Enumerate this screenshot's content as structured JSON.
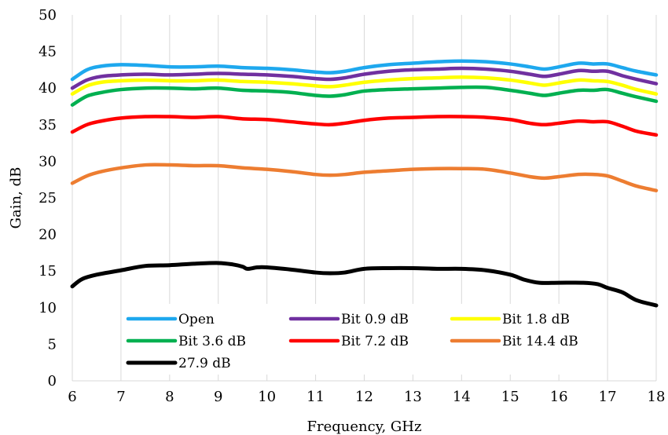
{
  "chart_data": {
    "type": "line",
    "title": "",
    "xlabel": "Frequency, GHz",
    "ylabel": "Gain, dB",
    "xlim": [
      6,
      18
    ],
    "ylim": [
      0,
      50
    ],
    "xticks": [
      6,
      7,
      8,
      9,
      10,
      11,
      12,
      13,
      14,
      15,
      16,
      17,
      18
    ],
    "yticks": [
      0,
      5,
      10,
      15,
      20,
      25,
      30,
      35,
      40,
      45,
      50
    ],
    "grid": "vertical",
    "legend": "bottom-left",
    "series": [
      {
        "name": "Open",
        "color": "#1ea8ee",
        "x": [
          6,
          6.3,
          6.6,
          7,
          7.5,
          8,
          8.5,
          9,
          9.5,
          10,
          10.5,
          11,
          11.3,
          11.6,
          12,
          12.5,
          13,
          13.5,
          14,
          14.5,
          15,
          15.4,
          15.7,
          16,
          16.4,
          16.7,
          17,
          17.3,
          17.6,
          18
        ],
        "y": [
          41.2,
          42.5,
          43.0,
          43.2,
          43.1,
          42.9,
          42.9,
          43.0,
          42.8,
          42.7,
          42.5,
          42.2,
          42.1,
          42.3,
          42.8,
          43.2,
          43.4,
          43.6,
          43.7,
          43.6,
          43.3,
          42.9,
          42.6,
          42.9,
          43.4,
          43.3,
          43.3,
          42.8,
          42.3,
          41.8
        ]
      },
      {
        "name": "Bit 0.9 dB",
        "color": "#7030a0",
        "x": [
          6,
          6.3,
          6.6,
          7,
          7.5,
          8,
          8.5,
          9,
          9.5,
          10,
          10.5,
          11,
          11.3,
          11.6,
          12,
          12.5,
          13,
          13.5,
          14,
          14.5,
          15,
          15.4,
          15.7,
          16,
          16.4,
          16.7,
          17,
          17.3,
          17.6,
          18
        ],
        "y": [
          40.0,
          41.1,
          41.6,
          41.8,
          41.9,
          41.8,
          41.9,
          42.0,
          41.9,
          41.8,
          41.6,
          41.3,
          41.2,
          41.4,
          41.9,
          42.3,
          42.5,
          42.6,
          42.7,
          42.6,
          42.3,
          41.9,
          41.6,
          41.9,
          42.4,
          42.3,
          42.3,
          41.7,
          41.2,
          40.6
        ]
      },
      {
        "name": "Bit 1.8 dB",
        "color": "#ffff00",
        "x": [
          6,
          6.3,
          6.6,
          7,
          7.5,
          8,
          8.5,
          9,
          9.5,
          10,
          10.5,
          11,
          11.3,
          11.6,
          12,
          12.5,
          13,
          13.5,
          14,
          14.5,
          15,
          15.4,
          15.7,
          16,
          16.4,
          16.7,
          17,
          17.3,
          17.6,
          18
        ],
        "y": [
          39.2,
          40.3,
          40.8,
          41.0,
          41.1,
          41.0,
          41.0,
          41.1,
          40.9,
          40.8,
          40.6,
          40.3,
          40.2,
          40.4,
          40.8,
          41.1,
          41.3,
          41.4,
          41.5,
          41.4,
          41.1,
          40.7,
          40.4,
          40.7,
          41.1,
          41.0,
          40.9,
          40.4,
          39.8,
          39.2
        ]
      },
      {
        "name": "Bit 3.6 dB",
        "color": "#00b050",
        "x": [
          6,
          6.3,
          6.6,
          7,
          7.5,
          8,
          8.5,
          9,
          9.5,
          10,
          10.5,
          11,
          11.3,
          11.6,
          12,
          12.5,
          13,
          13.5,
          14,
          14.5,
          15,
          15.4,
          15.7,
          16,
          16.4,
          16.7,
          17,
          17.3,
          17.6,
          18
        ],
        "y": [
          37.7,
          38.9,
          39.4,
          39.8,
          40.0,
          40.0,
          39.9,
          40.0,
          39.7,
          39.6,
          39.4,
          39.0,
          38.9,
          39.1,
          39.6,
          39.8,
          39.9,
          40.0,
          40.1,
          40.1,
          39.7,
          39.3,
          39.0,
          39.3,
          39.7,
          39.7,
          39.8,
          39.3,
          38.8,
          38.2
        ]
      },
      {
        "name": "Bit 7.2 dB",
        "color": "#ff0000",
        "x": [
          6,
          6.3,
          6.6,
          7,
          7.5,
          8,
          8.5,
          9,
          9.5,
          10,
          10.5,
          11,
          11.3,
          11.6,
          12,
          12.5,
          13,
          13.5,
          14,
          14.5,
          15,
          15.4,
          15.7,
          16,
          16.4,
          16.7,
          17,
          17.3,
          17.6,
          18
        ],
        "y": [
          34.0,
          35.0,
          35.5,
          35.9,
          36.1,
          36.1,
          36.0,
          36.1,
          35.8,
          35.7,
          35.4,
          35.1,
          35.0,
          35.2,
          35.6,
          35.9,
          36.0,
          36.1,
          36.1,
          36.0,
          35.7,
          35.2,
          35.0,
          35.2,
          35.5,
          35.4,
          35.4,
          34.8,
          34.1,
          33.6
        ]
      },
      {
        "name": "Bit 14.4 dB",
        "color": "#ed7d31",
        "x": [
          6,
          6.3,
          6.6,
          7,
          7.5,
          8,
          8.5,
          9,
          9.5,
          10,
          10.5,
          11,
          11.3,
          11.6,
          12,
          12.5,
          13,
          13.5,
          14,
          14.5,
          15,
          15.4,
          15.7,
          16,
          16.4,
          16.7,
          17,
          17.3,
          17.6,
          18
        ],
        "y": [
          27.0,
          28.0,
          28.6,
          29.1,
          29.5,
          29.5,
          29.4,
          29.4,
          29.1,
          28.9,
          28.6,
          28.2,
          28.1,
          28.2,
          28.5,
          28.7,
          28.9,
          29.0,
          29.0,
          28.9,
          28.4,
          27.9,
          27.7,
          27.9,
          28.2,
          28.2,
          28.0,
          27.3,
          26.6,
          26.0
        ]
      },
      {
        "name": "27.9 dB",
        "color": "#000000",
        "x": [
          6,
          6.2,
          6.5,
          7,
          7.5,
          8,
          8.5,
          9,
          9.3,
          9.5,
          9.6,
          9.8,
          10,
          10.5,
          11,
          11.3,
          11.6,
          12,
          12.5,
          13,
          13.5,
          14,
          14.5,
          15,
          15.3,
          15.6,
          16,
          16.5,
          16.8,
          17,
          17.3,
          17.6,
          18
        ],
        "y": [
          12.9,
          13.9,
          14.5,
          15.1,
          15.7,
          15.8,
          16.0,
          16.1,
          15.9,
          15.6,
          15.3,
          15.5,
          15.5,
          15.2,
          14.8,
          14.7,
          14.8,
          15.3,
          15.4,
          15.4,
          15.3,
          15.3,
          15.1,
          14.5,
          13.8,
          13.4,
          13.4,
          13.4,
          13.2,
          12.7,
          12.1,
          11.0,
          10.3
        ]
      }
    ]
  }
}
